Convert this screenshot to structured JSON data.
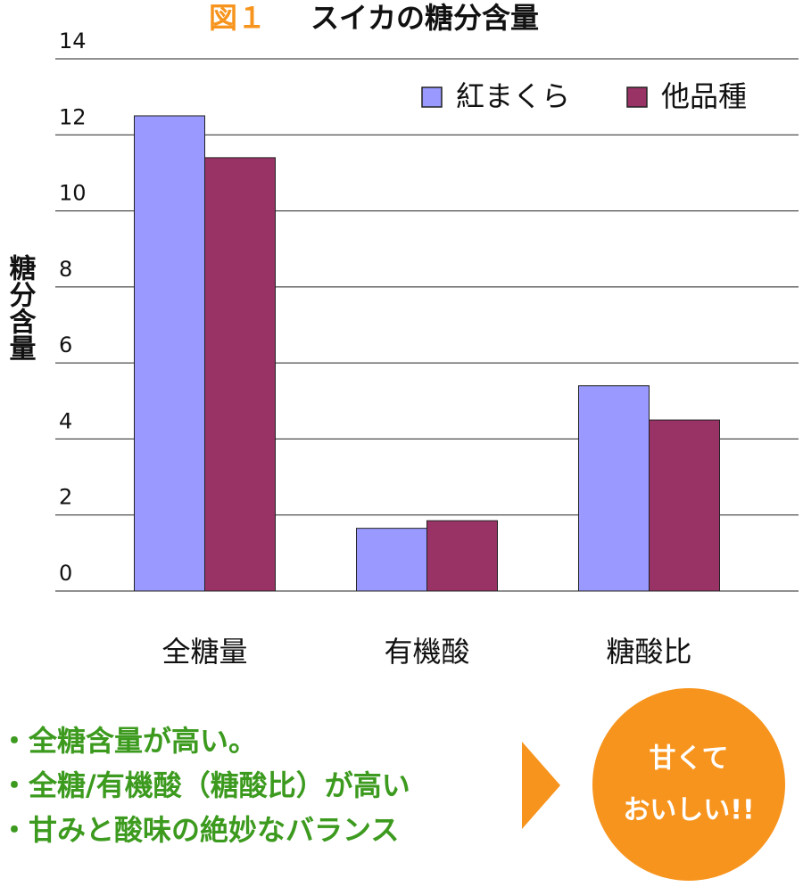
{
  "chart_data": {
    "type": "bar",
    "figure_label": "図１",
    "title": "スイカの糖分含量",
    "y_label": "糖分含量",
    "categories": [
      "全糖量",
      "有機酸",
      "糖酸比"
    ],
    "series": [
      {
        "name": "紅まくら",
        "color": "#9999ff",
        "values": [
          12.5,
          1.65,
          5.4
        ]
      },
      {
        "name": "他品種",
        "color": "#993366",
        "values": [
          11.4,
          1.85,
          4.5
        ]
      }
    ],
    "ylim": [
      0,
      14
    ],
    "yticks": [
      0,
      2,
      4,
      6,
      8,
      10,
      12,
      14
    ],
    "grid": true,
    "legend": "top-right"
  },
  "notes": [
    "・全糖含量が高い。",
    "・全糖/有機酸（糖酸比）が高い",
    "・甘みと酸味の絶妙なバランス"
  ],
  "conclusion": [
    "甘くて",
    "おいしい!!"
  ]
}
